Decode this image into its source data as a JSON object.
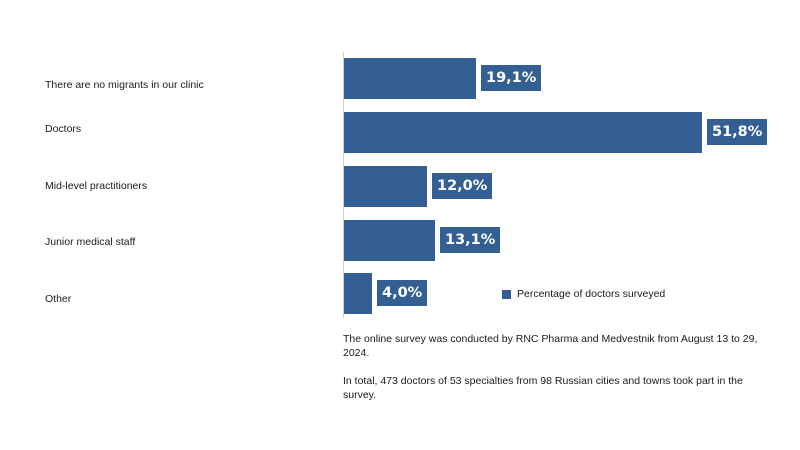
{
  "colors": {
    "bar": "#335f93",
    "label_text": "#ffffff"
  },
  "chart_data": {
    "type": "bar",
    "orientation": "horizontal",
    "categories": [
      "There are no migrants in our clinic",
      "Doctors",
      "Mid-level practitioners",
      "Junior medical staff",
      "Other"
    ],
    "series": [
      {
        "name": "Percentage of doctors surveyed",
        "values": [
          19.1,
          51.8,
          12.0,
          13.1,
          4.0
        ],
        "labels": [
          "19,1%",
          "51,8%",
          "12,0%",
          "13,1%",
          "4,0%"
        ]
      }
    ],
    "xlim": [
      0,
      51.8
    ],
    "grid": false,
    "legend_position": "bottom-right"
  },
  "notes": [
    "The online survey was conducted by RNC Pharma and Medvestnik from August 13 to 29, 2024.",
    "In total, 473 doctors of 53 specialties from 98 Russian cities and towns took part in the survey."
  ]
}
